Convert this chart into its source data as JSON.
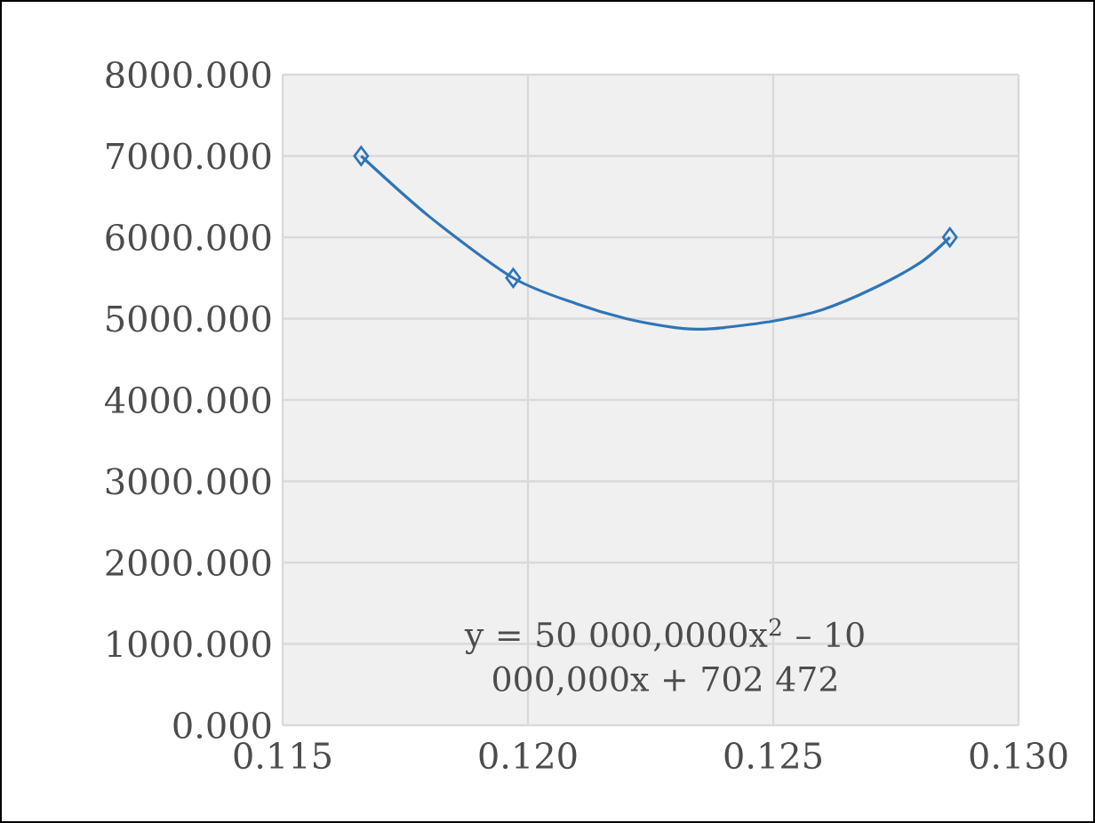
{
  "chart_data": {
    "type": "scatter",
    "xlim": [
      0.115,
      0.13
    ],
    "ylim": [
      0,
      8000
    ],
    "xticks": [
      {
        "value": 0.115,
        "label": "0.115"
      },
      {
        "value": 0.12,
        "label": "0.120"
      },
      {
        "value": 0.125,
        "label": "0.125"
      },
      {
        "value": 0.13,
        "label": "0.130"
      }
    ],
    "yticks": [
      {
        "value": 0,
        "label": "0.000"
      },
      {
        "value": 1000,
        "label": "1000.000"
      },
      {
        "value": 2000,
        "label": "2000.000"
      },
      {
        "value": 3000,
        "label": "3000.000"
      },
      {
        "value": 4000,
        "label": "4000.000"
      },
      {
        "value": 5000,
        "label": "5000.000"
      },
      {
        "value": 6000,
        "label": "6000.000"
      },
      {
        "value": 7000,
        "label": "7000.000"
      },
      {
        "value": 8000,
        "label": "8000.000"
      }
    ],
    "grid": true,
    "series": [
      {
        "type": "line",
        "color": "#2e75b6",
        "marker": "none",
        "x": [
          0.1166,
          0.118,
          0.1197,
          0.121,
          0.122,
          0.123,
          0.1236,
          0.124,
          0.125,
          0.126,
          0.127,
          0.128,
          0.1286
        ],
        "values": [
          7000,
          6250,
          5500,
          5180,
          5000,
          4890,
          4870,
          4890,
          4970,
          5110,
          5360,
          5690,
          6000
        ]
      },
      {
        "color": "#2e75b6",
        "marker": "diamond",
        "x": [
          0.1166,
          0.1197,
          0.1286
        ],
        "values": [
          7000,
          5500,
          6000
        ]
      }
    ],
    "annotations": [
      "y = 50 000,0000x$^{2}$ – 10 000,000x + 702 472"
    ]
  }
}
